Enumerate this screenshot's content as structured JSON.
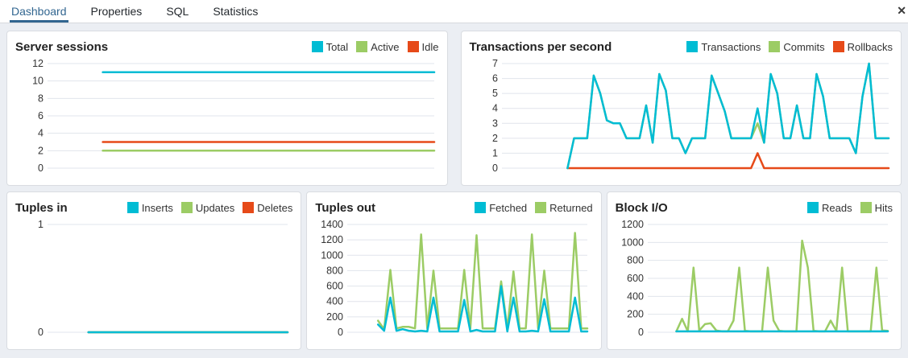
{
  "tabs": {
    "items": [
      {
        "label": "Dashboard",
        "active": true
      },
      {
        "label": "Properties",
        "active": false
      },
      {
        "label": "SQL",
        "active": false
      },
      {
        "label": "Statistics",
        "active": false
      }
    ],
    "close_icon": "✕"
  },
  "colors": {
    "accent": "#326690",
    "grid": "#e1e4ec",
    "panel_border": "#d9dce1",
    "background": "#ebeef3",
    "tick_label": "#333333",
    "cyan": "#00BCD4",
    "green": "#9CCC65",
    "red": "#E64A19"
  },
  "chart_data": [
    {
      "type": "line",
      "title": "Server sessions",
      "ylim": [
        0,
        12
      ],
      "yticks": [
        0,
        2,
        4,
        6,
        8,
        10,
        12
      ],
      "grid": true,
      "legend_position": "top-right",
      "series": [
        {
          "name": "Total",
          "color": "#00BCD4",
          "values": [
            null,
            null,
            null,
            null,
            null,
            null,
            null,
            11,
            11,
            11,
            11,
            11,
            11,
            11,
            11,
            11,
            11,
            11,
            11,
            11,
            11,
            11,
            11,
            11,
            11,
            11,
            11,
            11,
            11,
            11,
            11,
            11,
            11,
            11,
            11,
            11,
            11,
            11,
            11,
            11,
            11,
            11,
            11,
            11,
            11,
            11,
            11,
            11,
            11,
            11
          ]
        },
        {
          "name": "Active",
          "color": "#9CCC65",
          "values": [
            null,
            null,
            null,
            null,
            null,
            null,
            null,
            2,
            2,
            2,
            2,
            2,
            2,
            2,
            2,
            2,
            2,
            2,
            2,
            2,
            2,
            2,
            2,
            2,
            2,
            2,
            2,
            2,
            2,
            2,
            2,
            2,
            2,
            2,
            2,
            2,
            2,
            2,
            2,
            2,
            2,
            2,
            2,
            2,
            2,
            2,
            2,
            2,
            2,
            2
          ]
        },
        {
          "name": "Idle",
          "color": "#E64A19",
          "values": [
            null,
            null,
            null,
            null,
            null,
            null,
            null,
            3,
            3,
            3,
            3,
            3,
            3,
            3,
            3,
            3,
            3,
            3,
            3,
            3,
            3,
            3,
            3,
            3,
            3,
            3,
            3,
            3,
            3,
            3,
            3,
            3,
            3,
            3,
            3,
            3,
            3,
            3,
            3,
            3,
            3,
            3,
            3,
            3,
            3,
            3,
            3,
            3,
            3,
            3
          ]
        }
      ]
    },
    {
      "type": "line",
      "title": "Transactions per second",
      "ylim": [
        0,
        7
      ],
      "yticks": [
        0,
        1,
        2,
        3,
        4,
        5,
        6,
        7
      ],
      "grid": true,
      "legend_position": "top-right",
      "series": [
        {
          "name": "Transactions",
          "color": "#00BCD4",
          "values": [
            null,
            null,
            null,
            null,
            null,
            null,
            null,
            null,
            null,
            null,
            0,
            2,
            2,
            2,
            6.2,
            5,
            3.2,
            3,
            3,
            2,
            2,
            2,
            4.2,
            1.7,
            6.3,
            5.2,
            2,
            2,
            1,
            2,
            2,
            2,
            6.2,
            5,
            3.8,
            2,
            2,
            2,
            2,
            4,
            1.7,
            6.3,
            5,
            2,
            2,
            4.2,
            2,
            2,
            6.3,
            4.8,
            2,
            2,
            2,
            2,
            1,
            4.8,
            7,
            2,
            2,
            2
          ]
        },
        {
          "name": "Commits",
          "color": "#9CCC65",
          "values": [
            null,
            null,
            null,
            null,
            null,
            null,
            null,
            null,
            null,
            null,
            0,
            2,
            2,
            2,
            6.2,
            5,
            3.2,
            3,
            3,
            2,
            2,
            2,
            4.2,
            1.7,
            6.3,
            5.2,
            2,
            2,
            1,
            2,
            2,
            2,
            6.2,
            5,
            3.8,
            2,
            2,
            2,
            2,
            3,
            1.7,
            6.3,
            5,
            2,
            2,
            4.2,
            2,
            2,
            6.3,
            4.8,
            2,
            2,
            2,
            2,
            1,
            4.8,
            7,
            2,
            2,
            2
          ]
        },
        {
          "name": "Rollbacks",
          "color": "#E64A19",
          "values": [
            null,
            null,
            null,
            null,
            null,
            null,
            null,
            null,
            null,
            null,
            0,
            0,
            0,
            0,
            0,
            0,
            0,
            0,
            0,
            0,
            0,
            0,
            0,
            0,
            0,
            0,
            0,
            0,
            0,
            0,
            0,
            0,
            0,
            0,
            0,
            0,
            0,
            0,
            0,
            1,
            0,
            0,
            0,
            0,
            0,
            0,
            0,
            0,
            0,
            0,
            0,
            0,
            0,
            0,
            0,
            0,
            0,
            0,
            0,
            0
          ]
        }
      ]
    },
    {
      "type": "line",
      "title": "Tuples in",
      "ylim": [
        0,
        1
      ],
      "yticks": [
        0,
        1
      ],
      "grid": true,
      "legend_position": "top-right",
      "series": [
        {
          "name": "Inserts",
          "color": "#00BCD4",
          "values": [
            null,
            null,
            null,
            null,
            null,
            null,
            null,
            null,
            0,
            0,
            0,
            0,
            0,
            0,
            0,
            0,
            0,
            0,
            0,
            0,
            0,
            0,
            0,
            0,
            0,
            0,
            0,
            0,
            0,
            0,
            0,
            0,
            0,
            0,
            0,
            0,
            0,
            0,
            0,
            0,
            0,
            0,
            0,
            0,
            0,
            0,
            0,
            0
          ]
        },
        {
          "name": "Updates",
          "color": "#9CCC65",
          "values": [
            null,
            null,
            null,
            null,
            null,
            null,
            null,
            null,
            0,
            0,
            0,
            0,
            0,
            0,
            0,
            0,
            0,
            0,
            0,
            0,
            0,
            0,
            0,
            0,
            0,
            0,
            0,
            0,
            0,
            0,
            0,
            0,
            0,
            0,
            0,
            0,
            0,
            0,
            0,
            0,
            0,
            0,
            0,
            0,
            0,
            0,
            0,
            0
          ]
        },
        {
          "name": "Deletes",
          "color": "#E64A19",
          "values": [
            null,
            null,
            null,
            null,
            null,
            null,
            null,
            null,
            0,
            0,
            0,
            0,
            0,
            0,
            0,
            0,
            0,
            0,
            0,
            0,
            0,
            0,
            0,
            0,
            0,
            0,
            0,
            0,
            0,
            0,
            0,
            0,
            0,
            0,
            0,
            0,
            0,
            0,
            0,
            0,
            0,
            0,
            0,
            0,
            0,
            0,
            0,
            0
          ]
        }
      ]
    },
    {
      "type": "line",
      "title": "Tuples out",
      "ylim": [
        0,
        1400
      ],
      "yticks": [
        0,
        200,
        400,
        600,
        800,
        1000,
        1200,
        1400
      ],
      "grid": true,
      "legend_position": "top-right",
      "series": [
        {
          "name": "Fetched",
          "color": "#00BCD4",
          "values": [
            null,
            null,
            null,
            null,
            null,
            100,
            20,
            450,
            20,
            40,
            20,
            10,
            20,
            10,
            450,
            10,
            10,
            10,
            10,
            420,
            10,
            30,
            10,
            10,
            10,
            600,
            10,
            450,
            10,
            10,
            20,
            10,
            430,
            10,
            10,
            10,
            10,
            450,
            10,
            10
          ]
        },
        {
          "name": "Returned",
          "color": "#9CCC65",
          "values": [
            null,
            null,
            null,
            null,
            null,
            150,
            40,
            810,
            50,
            70,
            70,
            50,
            1270,
            50,
            800,
            50,
            50,
            50,
            50,
            810,
            50,
            1260,
            50,
            50,
            50,
            660,
            50,
            790,
            50,
            50,
            1270,
            50,
            800,
            50,
            50,
            50,
            50,
            1290,
            50,
            50
          ]
        }
      ]
    },
    {
      "type": "line",
      "title": "Block I/O",
      "ylim": [
        0,
        1200
      ],
      "yticks": [
        0,
        200,
        400,
        600,
        800,
        1000,
        1200
      ],
      "grid": true,
      "legend_position": "top-right",
      "series": [
        {
          "name": "Reads",
          "color": "#00BCD4",
          "values": [
            null,
            null,
            null,
            null,
            null,
            10,
            10,
            10,
            10,
            10,
            10,
            10,
            10,
            10,
            10,
            10,
            10,
            10,
            10,
            10,
            10,
            10,
            10,
            10,
            10,
            10,
            10,
            10,
            10,
            10,
            10,
            10,
            10,
            10,
            10,
            10,
            10,
            10,
            10,
            10,
            10,
            10,
            10
          ]
        },
        {
          "name": "Hits",
          "color": "#9CCC65",
          "values": [
            null,
            null,
            null,
            null,
            null,
            10,
            150,
            10,
            720,
            20,
            90,
            100,
            20,
            10,
            10,
            130,
            720,
            15,
            10,
            10,
            10,
            720,
            130,
            15,
            10,
            10,
            10,
            1020,
            720,
            15,
            10,
            10,
            130,
            15,
            720,
            10,
            10,
            10,
            10,
            10,
            720,
            20,
            15
          ]
        }
      ]
    }
  ]
}
